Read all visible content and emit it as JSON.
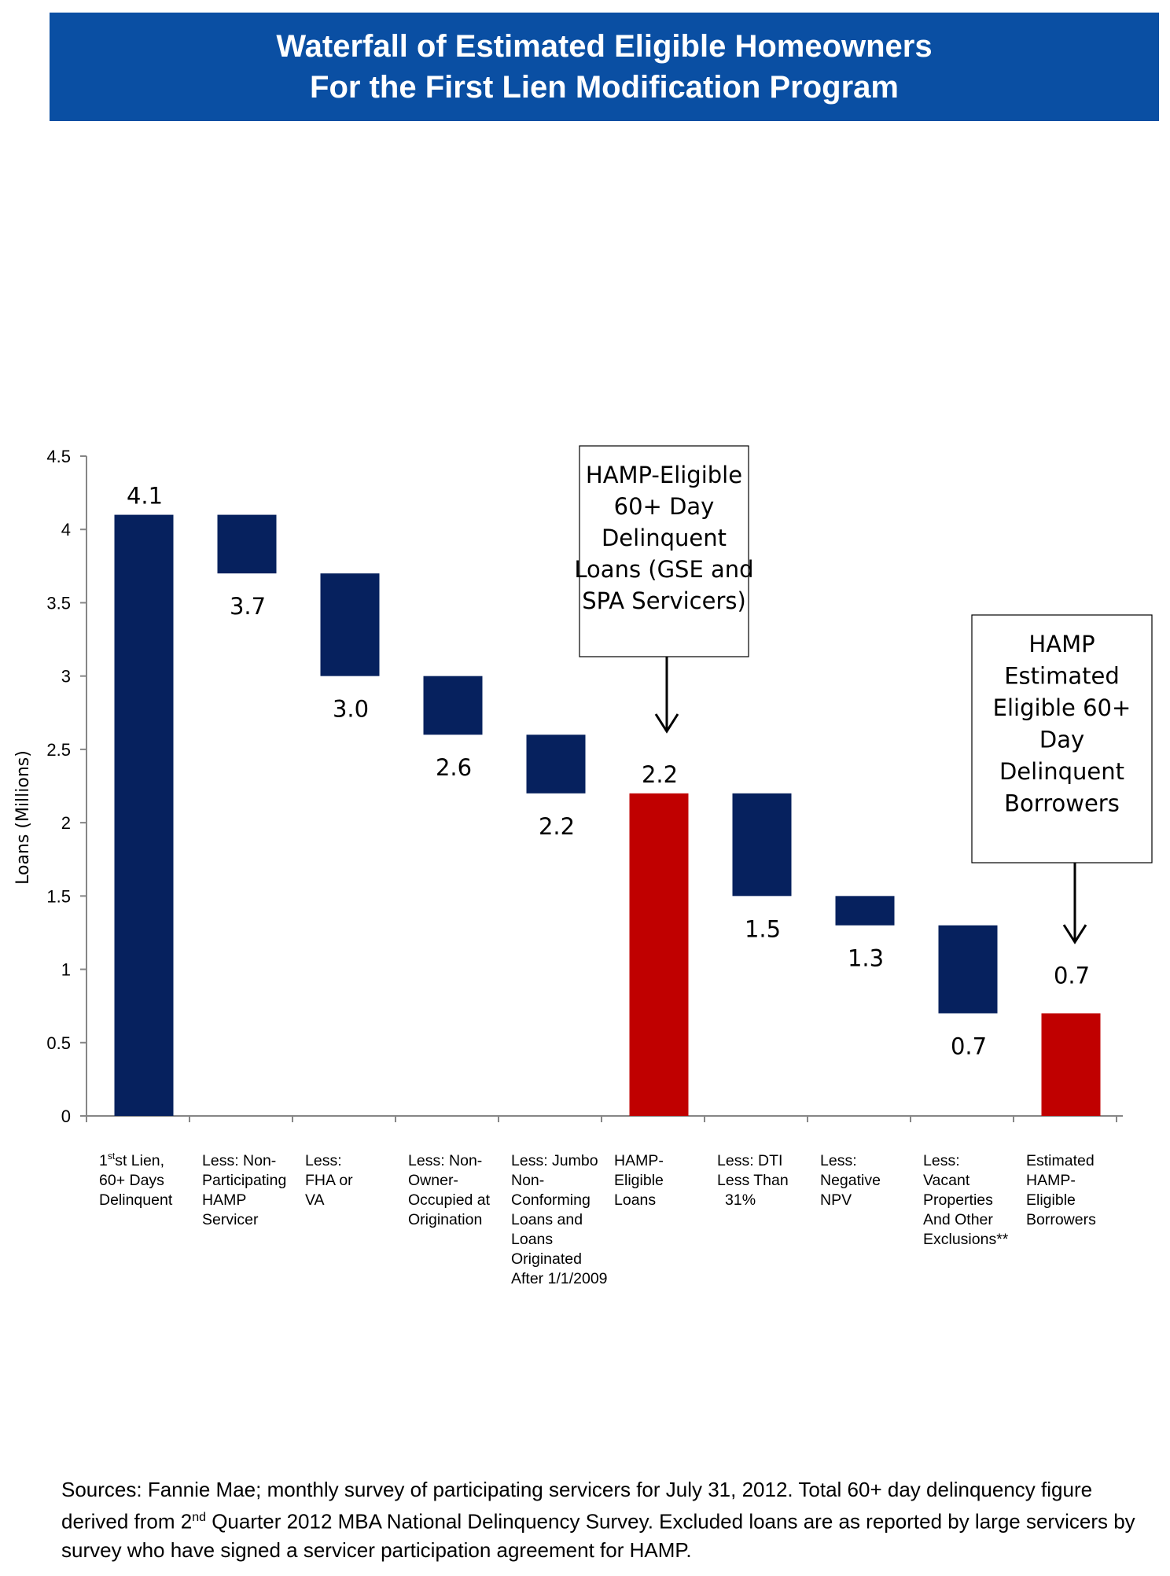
{
  "title": {
    "line1": "Waterfall of Estimated Eligible Homeowners",
    "line2": "For the First Lien Modification Program"
  },
  "colors": {
    "banner": "#0a4fa3",
    "decrease_bar": "#06215e",
    "total_bar": "#c00000"
  },
  "chart_data": {
    "type": "waterfall",
    "ylabel": "Loans (Millions)",
    "ylim": [
      0,
      4.5
    ],
    "yticks": [
      "0",
      "0.5",
      "1",
      "1.5",
      "2",
      "2.5",
      "3",
      "3.5",
      "4",
      "4.5"
    ],
    "grid": false,
    "bars": [
      {
        "category": [
          "1st Lien,",
          "60+ Days",
          "Delinquent"
        ],
        "from": 0,
        "to": 4.1,
        "kind": "start",
        "label": "4.1"
      },
      {
        "category": [
          "Less: Non-",
          "Participating",
          "HAMP",
          "Servicer"
        ],
        "from": 4.1,
        "to": 3.7,
        "kind": "decrease",
        "label": "3.7"
      },
      {
        "category": [
          "Less:",
          "FHA or",
          "VA"
        ],
        "from": 3.7,
        "to": 3.0,
        "kind": "decrease",
        "label": "3.0"
      },
      {
        "category": [
          "Less: Non-",
          "Owner-",
          "Occupied at",
          "Origination"
        ],
        "from": 3.0,
        "to": 2.6,
        "kind": "decrease",
        "label": "2.6"
      },
      {
        "category": [
          "Less: Jumbo",
          "Non-",
          "Conforming",
          "Loans and",
          "Loans",
          "Originated",
          "After 1/1/2009"
        ],
        "from": 2.6,
        "to": 2.2,
        "kind": "decrease",
        "label": "2.2"
      },
      {
        "category": [
          "HAMP-",
          "Eligible",
          "Loans"
        ],
        "from": 0,
        "to": 2.2,
        "kind": "total",
        "label": "2.2"
      },
      {
        "category": [
          "Less: DTI",
          "Less Than",
          "31%"
        ],
        "from": 2.2,
        "to": 1.5,
        "kind": "decrease",
        "label": "1.5"
      },
      {
        "category": [
          "Less:",
          "Negative",
          "NPV"
        ],
        "from": 1.5,
        "to": 1.3,
        "kind": "decrease",
        "label": "1.3"
      },
      {
        "category": [
          "Less:",
          "Vacant",
          "Properties",
          "And Other",
          "Exclusions**"
        ],
        "from": 1.3,
        "to": 0.7,
        "kind": "decrease",
        "label": "0.7"
      },
      {
        "category": [
          "Estimated",
          "HAMP-",
          "Eligible",
          "Borrowers"
        ],
        "from": 0,
        "to": 0.7,
        "kind": "total",
        "label": "0.7"
      }
    ],
    "first_category_superscript": "st",
    "annotations": [
      {
        "target_bar": 5,
        "lines": [
          "HAMP-Eligible",
          "60+ Day",
          "Delinquent",
          "Loans (GSE and",
          "SPA Servicers)"
        ]
      },
      {
        "target_bar": 9,
        "lines": [
          "HAMP",
          "Estimated",
          "Eligible 60+",
          "Day",
          "Delinquent",
          "Borrowers"
        ]
      }
    ]
  },
  "sources": {
    "part1": "Sources: Fannie Mae; monthly survey of participating servicers for July 31, 2012. Total 60+ day delinquency figure derived from 2",
    "sup": "nd",
    "part2": " Quarter 2012 MBA National Delinquency Survey. Excluded loans are as reported by large servicers by survey who have signed a servicer participation agreement for HAMP."
  }
}
